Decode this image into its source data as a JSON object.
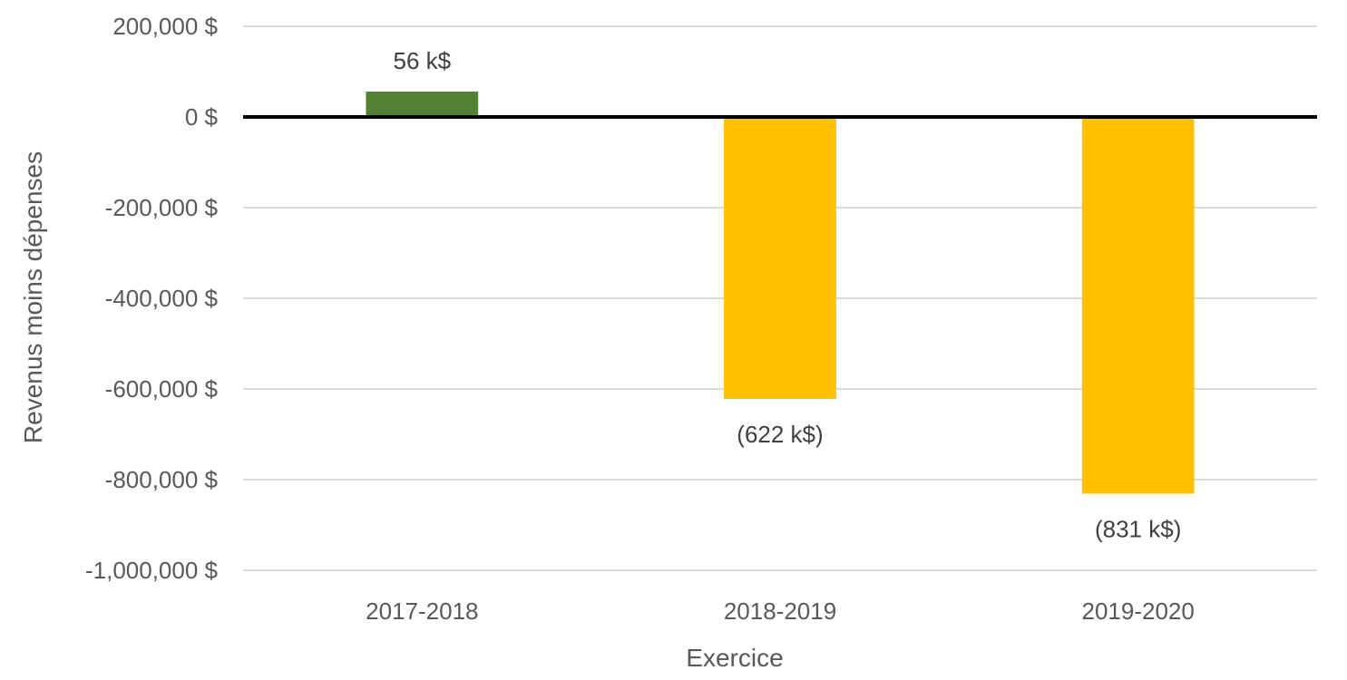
{
  "chart_data": {
    "type": "bar",
    "title": "",
    "xlabel": "Exercice",
    "ylabel": "Revenus moins dépenses",
    "categories": [
      "2017-2018",
      "2018-2019",
      "2019-2020"
    ],
    "values": [
      56000,
      -622000,
      -831000
    ],
    "data_labels": [
      "56 k$",
      "(622 k$)",
      "(831 k$)"
    ],
    "bar_colors": [
      "#548235",
      "#FFC000",
      "#FFC000"
    ],
    "ylim": [
      -1000000,
      200000
    ],
    "yticks": [
      200000,
      0,
      -200000,
      -400000,
      -600000,
      -800000,
      -1000000
    ],
    "ytick_labels": [
      "200,000 $",
      "0 $",
      "-200,000 $",
      "-400,000 $",
      "-600,000 $",
      "-800,000 $",
      "-1,000,000 $"
    ],
    "grid": true,
    "legend": "none"
  }
}
